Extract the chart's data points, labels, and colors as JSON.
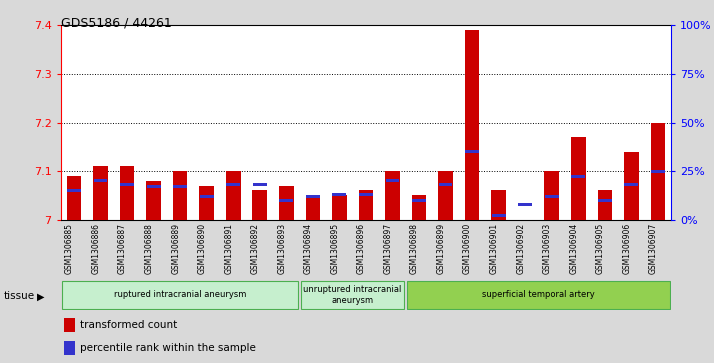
{
  "title": "GDS5186 / 44261",
  "samples": [
    "GSM1306885",
    "GSM1306886",
    "GSM1306887",
    "GSM1306888",
    "GSM1306889",
    "GSM1306890",
    "GSM1306891",
    "GSM1306892",
    "GSM1306893",
    "GSM1306894",
    "GSM1306895",
    "GSM1306896",
    "GSM1306897",
    "GSM1306898",
    "GSM1306899",
    "GSM1306900",
    "GSM1306901",
    "GSM1306902",
    "GSM1306903",
    "GSM1306904",
    "GSM1306905",
    "GSM1306906",
    "GSM1306907"
  ],
  "red_values": [
    7.09,
    7.11,
    7.11,
    7.08,
    7.1,
    7.07,
    7.1,
    7.06,
    7.07,
    7.05,
    7.05,
    7.06,
    7.1,
    7.05,
    7.1,
    7.39,
    7.06,
    7.0,
    7.1,
    7.17,
    7.06,
    7.14,
    7.2
  ],
  "blue_pct": [
    15,
    20,
    18,
    17,
    17,
    12,
    18,
    18,
    10,
    12,
    13,
    13,
    20,
    10,
    18,
    35,
    2,
    8,
    12,
    22,
    10,
    18,
    25
  ],
  "ylim_left": [
    7.0,
    7.4
  ],
  "ylim_right": [
    0,
    100
  ],
  "yticks_left": [
    7.0,
    7.1,
    7.2,
    7.3,
    7.4
  ],
  "ytick_labels_left": [
    "7",
    "7.1",
    "7.2",
    "7.3",
    "7.4"
  ],
  "yticks_right": [
    0,
    25,
    50,
    75,
    100
  ],
  "ytick_labels_right": [
    "0%",
    "25%",
    "50%",
    "75%",
    "100%"
  ],
  "groups_def": [
    {
      "start": 0,
      "end": 8,
      "color": "#c6efce",
      "edge": "#4caf50",
      "label": "ruptured intracranial aneurysm"
    },
    {
      "start": 9,
      "end": 12,
      "color": "#c6efce",
      "edge": "#4caf50",
      "label": "unruptured intracranial\naneurysm"
    },
    {
      "start": 13,
      "end": 22,
      "color": "#92d050",
      "edge": "#4caf50",
      "label": "superficial temporal artery"
    }
  ],
  "bar_color": "#cc0000",
  "blue_color": "#3333cc",
  "bg_color": "#d9d9d9",
  "plot_bg": "#ffffff",
  "base_value": 7.0,
  "bar_width": 0.55,
  "legend_items": [
    {
      "color": "#cc0000",
      "label": "transformed count"
    },
    {
      "color": "#3333cc",
      "label": "percentile rank within the sample"
    }
  ]
}
